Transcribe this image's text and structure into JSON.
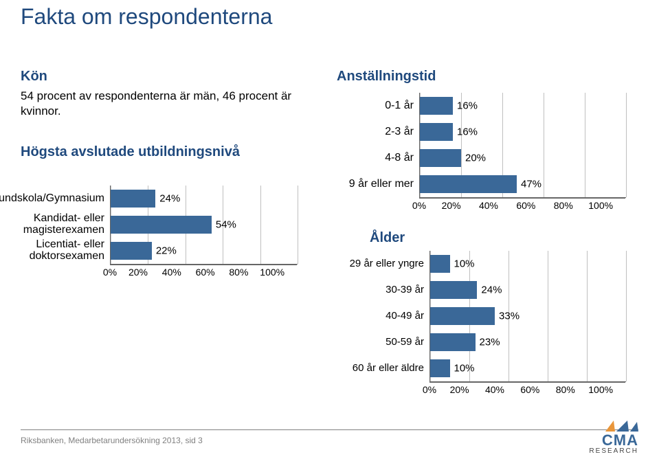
{
  "title": "Fakta om respondenterna",
  "colors": {
    "title": "#1f497d",
    "bar": "#3a6898",
    "grid": "#bfbfbf",
    "axis": "#666666",
    "text": "#000000",
    "footer_text": "#808080",
    "logo_orange": "#e9963a",
    "background": "#ffffff"
  },
  "kon": {
    "heading": "Kön",
    "text": "54 procent av respondenterna är män, 46 procent är kvinnor."
  },
  "utbildning": {
    "heading": "Högsta avslutade utbildningsnivå",
    "chart": {
      "type": "bar-horizontal",
      "xlim": [
        0,
        100
      ],
      "xtick_step": 20,
      "xticks": [
        "0%",
        "20%",
        "40%",
        "60%",
        "80%",
        "100%"
      ],
      "bar_color": "#3a6898",
      "grid_color": "#bfbfbf",
      "label_fontsize": 16,
      "value_fontsize": 15,
      "items": [
        {
          "label": "Grundskola/Gymnasium",
          "value": 24,
          "display": "24%"
        },
        {
          "label": "Kandidat- eller magisterexamen",
          "value": 54,
          "display": "54%"
        },
        {
          "label": "Licentiat- eller doktorsexamen",
          "value": 22,
          "display": "22%"
        }
      ]
    }
  },
  "anstallningstid": {
    "heading": "Anställningstid",
    "chart": {
      "type": "bar-horizontal",
      "xlim": [
        0,
        100
      ],
      "xtick_step": 20,
      "xticks": [
        "0%",
        "20%",
        "40%",
        "60%",
        "80%",
        "100%"
      ],
      "bar_color": "#3a6898",
      "grid_color": "#bfbfbf",
      "label_fontsize": 16,
      "value_fontsize": 15,
      "items": [
        {
          "label": "0-1 år",
          "value": 16,
          "display": "16%"
        },
        {
          "label": "2-3 år",
          "value": 16,
          "display": "16%"
        },
        {
          "label": "4-8 år",
          "value": 20,
          "display": "20%"
        },
        {
          "label": "9 år eller mer",
          "value": 47,
          "display": "47%"
        }
      ]
    }
  },
  "alder": {
    "heading": "Ålder",
    "chart": {
      "type": "bar-horizontal",
      "xlim": [
        0,
        100
      ],
      "xtick_step": 20,
      "xticks": [
        "0%",
        "20%",
        "40%",
        "60%",
        "80%",
        "100%"
      ],
      "bar_color": "#3a6898",
      "grid_color": "#bfbfbf",
      "label_fontsize": 15,
      "value_fontsize": 15,
      "items": [
        {
          "label": "29 år eller yngre",
          "value": 10,
          "display": "10%"
        },
        {
          "label": "30-39 år",
          "value": 24,
          "display": "24%"
        },
        {
          "label": "40-49 år",
          "value": 33,
          "display": "33%"
        },
        {
          "label": "50-59 år",
          "value": 23,
          "display": "23%"
        },
        {
          "label": "60 år eller äldre",
          "value": 10,
          "display": "10%"
        }
      ]
    }
  },
  "footer": {
    "text": "Riksbanken, Medarbetarundersökning 2013, sid 3"
  },
  "logo": {
    "line1": "CMA",
    "line2": "RESEARCH"
  }
}
